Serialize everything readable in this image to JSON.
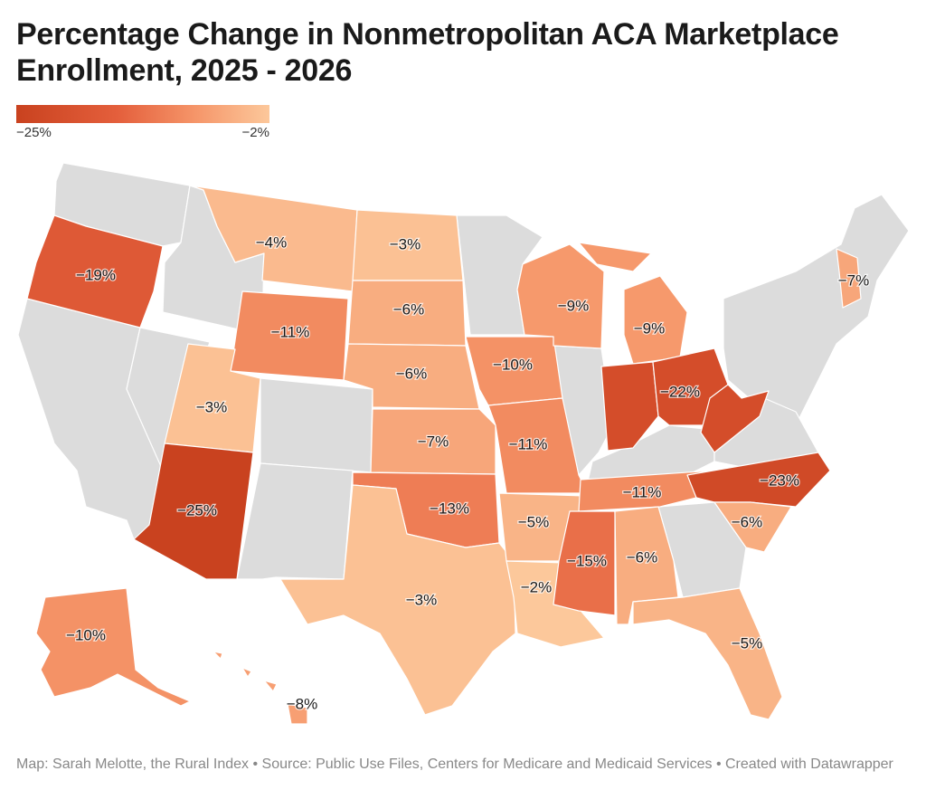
{
  "title": {
    "line1": "Percentage Change in Nonmetropolitan ACA Marketplace",
    "line2": "Enrollment, 2025 - 2026"
  },
  "legend": {
    "min_label": "−25%",
    "max_label": "−2%",
    "colors": [
      "#c9421f",
      "#e45f3c",
      "#f59468",
      "#fcc89b"
    ]
  },
  "colors": {
    "no_data": "#dcdcdc",
    "scale_min": -25,
    "scale_max": -2
  },
  "states": [
    {
      "id": "OR",
      "label": "−19%",
      "value": -19
    },
    {
      "id": "MT",
      "label": "−4%",
      "value": -4
    },
    {
      "id": "ND",
      "label": "−3%",
      "value": -3
    },
    {
      "id": "SD",
      "label": "−6%",
      "value": -6
    },
    {
      "id": "WY",
      "label": "−11%",
      "value": -11
    },
    {
      "id": "NE",
      "label": "−6%",
      "value": -6
    },
    {
      "id": "UT",
      "label": "−3%",
      "value": -3
    },
    {
      "id": "AZ",
      "label": "−25%",
      "value": -25
    },
    {
      "id": "KS",
      "label": "−7%",
      "value": -7
    },
    {
      "id": "OK",
      "label": "−13%",
      "value": -13
    },
    {
      "id": "TX",
      "label": "−3%",
      "value": -3
    },
    {
      "id": "IA",
      "label": "−10%",
      "value": -10
    },
    {
      "id": "MO",
      "label": "−11%",
      "value": -11
    },
    {
      "id": "AR",
      "label": "−5%",
      "value": -5
    },
    {
      "id": "LA",
      "label": "−2%",
      "value": -2
    },
    {
      "id": "WI",
      "label": "−9%",
      "value": -9
    },
    {
      "id": "MI",
      "label": "−9%",
      "value": -9
    },
    {
      "id": "IN",
      "label": "",
      "value": -22
    },
    {
      "id": "OH",
      "label": "−22%",
      "value": -22
    },
    {
      "id": "WV",
      "label": "",
      "value": -22
    },
    {
      "id": "TN",
      "label": "−11%",
      "value": -11
    },
    {
      "id": "MS",
      "label": "−15%",
      "value": -15
    },
    {
      "id": "AL",
      "label": "−6%",
      "value": -6
    },
    {
      "id": "NC",
      "label": "−23%",
      "value": -23
    },
    {
      "id": "SC",
      "label": "−6%",
      "value": -6
    },
    {
      "id": "FL",
      "label": "−5%",
      "value": -5
    },
    {
      "id": "NH",
      "label": "−7%",
      "value": -7
    },
    {
      "id": "AK",
      "label": "−10%",
      "value": -10
    },
    {
      "id": "HI",
      "label": "−8%",
      "value": -8
    }
  ],
  "footer": "Map: Sarah Melotte, the Rural Index • Source: Public Use Files, Centers for Medicare and Medicaid Services • Created with Datawrapper"
}
